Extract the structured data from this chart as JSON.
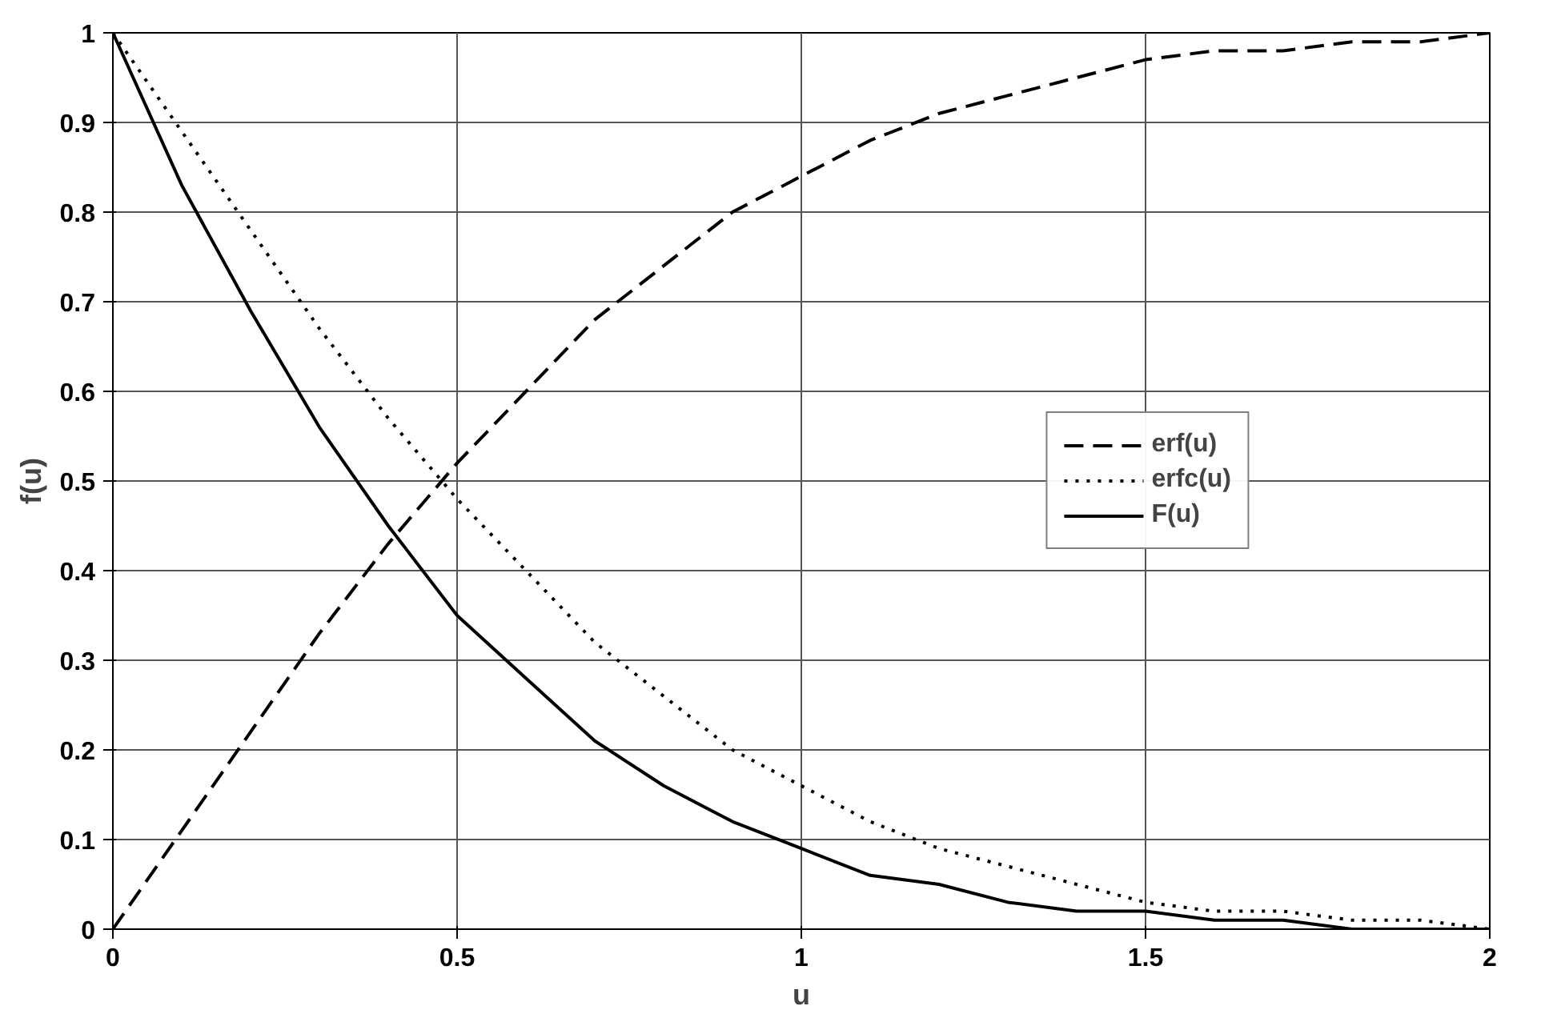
{
  "chart_data": {
    "type": "line",
    "xlabel": "u",
    "ylabel": "f(u)",
    "x": [
      0,
      0.1,
      0.2,
      0.3,
      0.4,
      0.5,
      0.6,
      0.7,
      0.8,
      0.9,
      1,
      1.1,
      1.2,
      1.3,
      1.4,
      1.5,
      1.6,
      1.7,
      1.8,
      1.9,
      2
    ],
    "series": [
      {
        "name": "erf(u)",
        "color": "#000000",
        "line_style": "dashed",
        "values": [
          0,
          0.11,
          0.22,
          0.33,
          0.43,
          0.52,
          0.6,
          0.68,
          0.74,
          0.8,
          0.84,
          0.88,
          0.91,
          0.93,
          0.95,
          0.97,
          0.98,
          0.98,
          0.99,
          0.99,
          1.0
        ]
      },
      {
        "name": "erfc(u)",
        "color": "#000000",
        "line_style": "dotted",
        "values": [
          1,
          0.89,
          0.78,
          0.67,
          0.57,
          0.48,
          0.4,
          0.32,
          0.26,
          0.2,
          0.16,
          0.12,
          0.09,
          0.07,
          0.05,
          0.03,
          0.02,
          0.02,
          0.01,
          0.01,
          0.0
        ]
      },
      {
        "name": "F(u)",
        "color": "#000000",
        "line_style": "solid",
        "values": [
          1,
          0.83,
          0.69,
          0.56,
          0.45,
          0.35,
          0.28,
          0.21,
          0.16,
          0.12,
          0.09,
          0.06,
          0.05,
          0.03,
          0.02,
          0.02,
          0.01,
          0.01,
          0.0,
          0.0,
          0.0
        ]
      }
    ],
    "xlim": [
      0,
      2
    ],
    "xticks": [
      0,
      0.5,
      1,
      1.5,
      2
    ],
    "ylim": [
      0,
      1
    ],
    "yticks": [
      0,
      0.1,
      0.2,
      0.3,
      0.4,
      0.5,
      0.6,
      0.7,
      0.8,
      0.9,
      1
    ],
    "grid": true,
    "legend": "center right"
  }
}
